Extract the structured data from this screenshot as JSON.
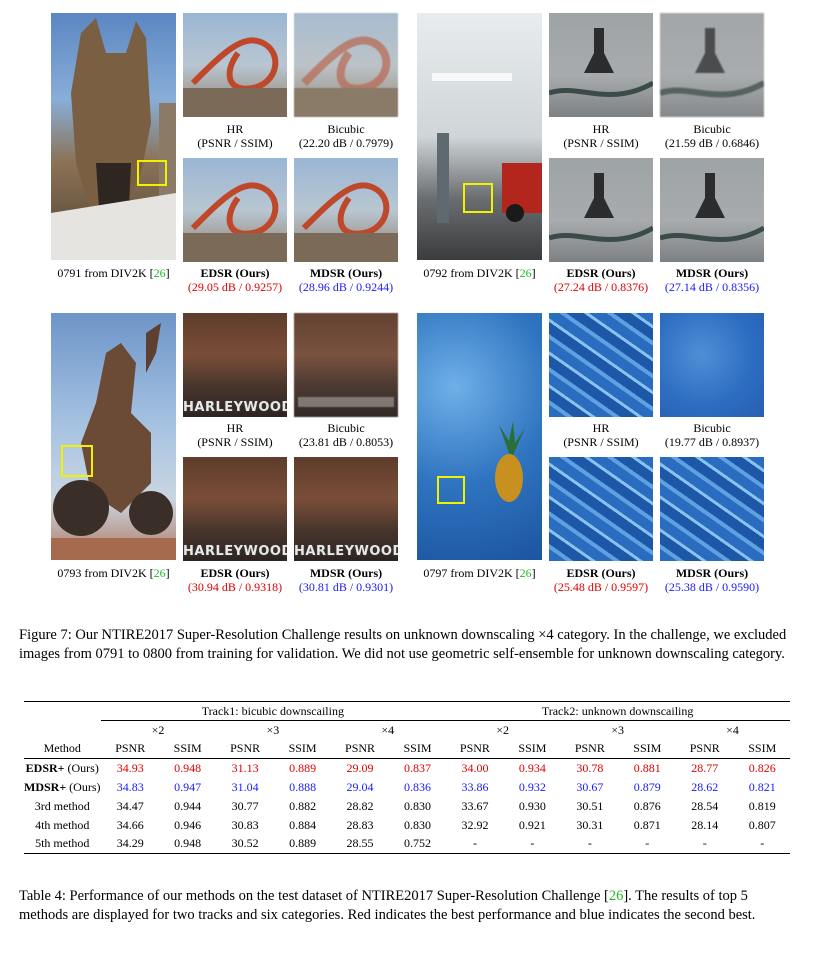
{
  "panels": [
    {
      "id": "0791",
      "full_caption": "0791 from DIV2K",
      "ref": "26",
      "hr_label": "HR",
      "hr_sub": "(PSNR / SSIM)",
      "bicubic_label": "Bicubic",
      "bicubic_val": "(22.20 dB / 0.7979)",
      "edsr_label": "EDSR (Ours)",
      "edsr_val": "(29.05 dB / 0.9257)",
      "mdsr_label": "MDSR (Ours)",
      "mdsr_val": "(28.96 dB / 0.9244)"
    },
    {
      "id": "0792",
      "full_caption": "0792 from DIV2K",
      "ref": "26",
      "hr_label": "HR",
      "hr_sub": "(PSNR / SSIM)",
      "bicubic_label": "Bicubic",
      "bicubic_val": "(21.59 dB / 0.6846)",
      "edsr_label": "EDSR (Ours)",
      "edsr_val": "(27.24 dB / 0.8376)",
      "mdsr_label": "MDSR (Ours)",
      "mdsr_val": "(27.14 dB / 0.8356)"
    },
    {
      "id": "0793",
      "full_caption": "0793 from DIV2K",
      "ref": "26",
      "hr_label": "HR",
      "hr_sub": "(PSNR / SSIM)",
      "bicubic_label": "Bicubic",
      "bicubic_val": "(23.81 dB / 0.8053)",
      "edsr_label": "EDSR (Ours)",
      "edsr_val": "(30.94 dB / 0.9318)",
      "mdsr_label": "MDSR (Ours)",
      "mdsr_val": "(30.81 dB / 0.9301)",
      "harley": "HARLEYWOOD"
    },
    {
      "id": "0797",
      "full_caption": "0797 from DIV2K",
      "ref": "26",
      "hr_label": "HR",
      "hr_sub": "(PSNR / SSIM)",
      "bicubic_label": "Bicubic",
      "bicubic_val": "(19.77 dB / 0.8937)",
      "edsr_label": "EDSR (Ours)",
      "edsr_val": "(25.48 dB / 0.9597)",
      "mdsr_label": "MDSR (Ours)",
      "mdsr_val": "(25.38 dB / 0.9590)"
    }
  ],
  "figure_caption": "Figure 7: Our NTIRE2017 Super-Resolution Challenge results on unknown downscaling ×4 category. In the challenge, we excluded images from 0791 to 0800 from training for validation. We did not use geometric self-ensemble for unknown downscaling category.",
  "table": {
    "track1": "Track1: bicubic downscailing",
    "track2": "Track2: unknown downscailing",
    "scales": [
      "×2",
      "×3",
      "×4",
      "×2",
      "×3",
      "×4"
    ],
    "method_header": "Method",
    "metrics": [
      "PSNR",
      "SSIM",
      "PSNR",
      "SSIM",
      "PSNR",
      "SSIM",
      "PSNR",
      "SSIM",
      "PSNR",
      "SSIM",
      "PSNR",
      "SSIM"
    ],
    "rows": [
      {
        "method_bold": "EDSR+",
        "method_rest": " (Ours)",
        "color": "red",
        "values": [
          "34.93",
          "0.948",
          "31.13",
          "0.889",
          "29.09",
          "0.837",
          "34.00",
          "0.934",
          "30.78",
          "0.881",
          "28.77",
          "0.826"
        ]
      },
      {
        "method_bold": "MDSR+",
        "method_rest": " (Ours)",
        "color": "blue",
        "values": [
          "34.83",
          "0.947",
          "31.04",
          "0.888",
          "29.04",
          "0.836",
          "33.86",
          "0.932",
          "30.67",
          "0.879",
          "28.62",
          "0.821"
        ]
      },
      {
        "method_bold": "",
        "method_rest": "3rd method",
        "color": "black",
        "values": [
          "34.47",
          "0.944",
          "30.77",
          "0.882",
          "28.82",
          "0.830",
          "33.67",
          "0.930",
          "30.51",
          "0.876",
          "28.54",
          "0.819"
        ]
      },
      {
        "method_bold": "",
        "method_rest": "4th method",
        "color": "black",
        "values": [
          "34.66",
          "0.946",
          "30.83",
          "0.884",
          "28.83",
          "0.830",
          "32.92",
          "0.921",
          "30.31",
          "0.871",
          "28.14",
          "0.807"
        ]
      },
      {
        "method_bold": "",
        "method_rest": "5th method",
        "color": "black",
        "values": [
          "34.29",
          "0.948",
          "30.52",
          "0.889",
          "28.55",
          "0.752",
          "-",
          "-",
          "-",
          "-",
          "-",
          "-"
        ]
      }
    ]
  },
  "table_caption_pre": "Table 4: Performance of our methods on the test dataset of NTIRE2017 Super-Resolution Challenge [",
  "table_caption_ref": "26",
  "table_caption_post": "]. The results of top 5 methods are displayed for two tracks and six categories. Red indicates the best performance and blue indicates the second best.",
  "colors": {
    "best": "#e00000",
    "second": "#1a1aff",
    "cite": "#22bb22",
    "highlight_box": "#f2f200"
  }
}
